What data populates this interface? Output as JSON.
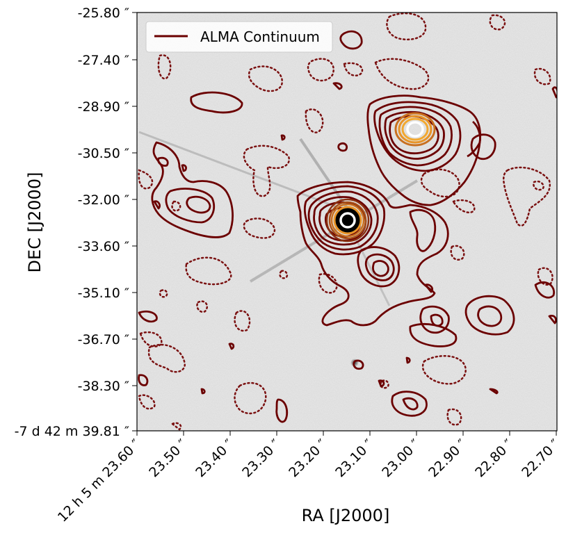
{
  "chart_data": {
    "type": "contour",
    "xlabel": "RA [J2000]",
    "ylabel": "DEC [J2000]",
    "x_ticks": [
      "12 h 5 m 23.60 ″",
      "23.50 ″",
      "23.40 ″",
      "23.30 ″",
      "23.20 ″",
      "23.10 ″",
      "23.00 ″",
      "22.90 ″",
      "22.80 ″",
      "22.70 ″"
    ],
    "y_ticks": [
      "-25.80 ″",
      "-27.40 ″",
      "-28.90 ″",
      "-30.50 ″",
      "-32.00 ″",
      "-33.60 ″",
      "-35.10 ″",
      "-36.70 ″",
      "-38.30 ″",
      "-7 d 42 m 39.81 ″"
    ],
    "legend": {
      "label": "ALMA Continuum",
      "placement": "top-left",
      "color": "#6b0000"
    },
    "background": "grayscale optical image",
    "sources": [
      {
        "name": "",
        "ra": "23.08",
        "dec": "-32.80"
      },
      {
        "name": "",
        "ra": "22.95",
        "dec": "-29.70"
      },
      {
        "name": "",
        "ra": "23.03",
        "dec": "-34.70"
      },
      {
        "name": "",
        "ra": "23.52",
        "dec": "-32.00"
      }
    ],
    "colors": {
      "positive_contour": "#6b0000",
      "negative_contour": "#7a1010",
      "mid_contour": "#c87020",
      "high_contour": "#f2a830",
      "peak_contour": "#ffffff",
      "core": "#000000"
    }
  }
}
